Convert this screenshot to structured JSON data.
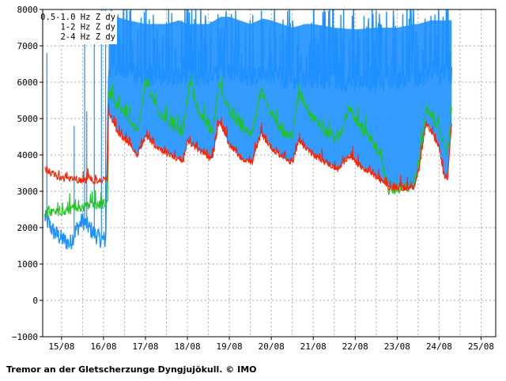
{
  "caption": "Tremor an der Gletscherzunge Dyngjujökull. © IMO",
  "chart_data": {
    "type": "line",
    "y_ticks": [
      8000,
      7000,
      6000,
      5000,
      4000,
      3000,
      2000,
      1000,
      0,
      -1000
    ],
    "y_tick_labels": [
      "8000",
      "7000",
      "6000",
      "5000",
      "4000",
      "3000",
      "2000",
      "1000",
      "0",
      "−1000"
    ],
    "ylim": [
      -1000,
      8000
    ],
    "x_tick_labels": [
      "15/08",
      "16/08",
      "17/08",
      "18/08",
      "19/08",
      "20/08",
      "21/08",
      "22/08",
      "23/08",
      "24/08",
      "25/08"
    ],
    "xlim": [
      14.55,
      25.35
    ],
    "grid": true,
    "legend_position": "top-left",
    "series": [
      {
        "name": "0.5-1.0 Hz Z dy",
        "color": "#1e90ff",
        "points": [
          [
            14.6,
            2300
          ],
          [
            14.8,
            1900
          ],
          [
            15.0,
            1700
          ],
          [
            15.2,
            1550
          ],
          [
            15.35,
            1950
          ],
          [
            15.5,
            2200
          ],
          [
            15.65,
            2000
          ],
          [
            15.9,
            1700
          ],
          [
            16.05,
            1650
          ],
          [
            16.12,
            6200
          ],
          [
            16.3,
            6300
          ],
          [
            16.6,
            6200
          ],
          [
            17.0,
            6100
          ],
          [
            17.5,
            6100
          ],
          [
            17.8,
            6200
          ],
          [
            18.0,
            6100
          ],
          [
            18.5,
            6100
          ],
          [
            18.8,
            6300
          ],
          [
            19.0,
            6300
          ],
          [
            19.5,
            6100
          ],
          [
            19.8,
            6250
          ],
          [
            20.0,
            6200
          ],
          [
            20.5,
            6000
          ],
          [
            20.8,
            6100
          ],
          [
            21.0,
            6100
          ],
          [
            21.5,
            6000
          ],
          [
            22.0,
            5950
          ],
          [
            22.5,
            6000
          ],
          [
            23.0,
            6000
          ],
          [
            23.45,
            6100
          ],
          [
            23.5,
            6100
          ],
          [
            23.8,
            6200
          ],
          [
            24.0,
            6200
          ],
          [
            24.3,
            6200
          ]
        ],
        "peaks": [
          [
            14.65,
            6800
          ],
          [
            15.3,
            4800
          ],
          [
            15.55,
            7500
          ],
          [
            15.6,
            5200
          ],
          [
            15.78,
            7700
          ],
          [
            15.95,
            8000
          ],
          [
            16.05,
            8000
          ]
        ]
      },
      {
        "name": "1-2 Hz Z dy",
        "color": "#1fc51f",
        "points": [
          [
            14.6,
            2400
          ],
          [
            15.0,
            2450
          ],
          [
            15.5,
            2550
          ],
          [
            16.0,
            2650
          ],
          [
            16.1,
            2700
          ],
          [
            16.12,
            5700
          ],
          [
            16.3,
            5400
          ],
          [
            16.6,
            5000
          ],
          [
            16.8,
            4600
          ],
          [
            17.0,
            6000
          ],
          [
            17.3,
            5200
          ],
          [
            17.6,
            4800
          ],
          [
            17.9,
            4600
          ],
          [
            18.05,
            6000
          ],
          [
            18.3,
            5100
          ],
          [
            18.6,
            4600
          ],
          [
            18.75,
            5900
          ],
          [
            19.0,
            5200
          ],
          [
            19.3,
            4700
          ],
          [
            19.55,
            4600
          ],
          [
            19.75,
            5800
          ],
          [
            20.0,
            5100
          ],
          [
            20.3,
            4600
          ],
          [
            20.5,
            4500
          ],
          [
            20.65,
            5700
          ],
          [
            21.0,
            5000
          ],
          [
            21.3,
            4600
          ],
          [
            21.6,
            4400
          ],
          [
            21.85,
            5300
          ],
          [
            22.1,
            4800
          ],
          [
            22.4,
            4400
          ],
          [
            22.6,
            4000
          ],
          [
            22.8,
            3000
          ],
          [
            23.2,
            3100
          ],
          [
            23.4,
            3100
          ],
          [
            23.5,
            3600
          ],
          [
            23.7,
            5300
          ],
          [
            24.0,
            4700
          ],
          [
            24.2,
            4100
          ],
          [
            24.3,
            5300
          ]
        ]
      },
      {
        "name": "2-4 Hz Z dy",
        "color": "#ff2200",
        "points": [
          [
            14.6,
            3600
          ],
          [
            15.0,
            3350
          ],
          [
            15.5,
            3300
          ],
          [
            16.0,
            3300
          ],
          [
            16.1,
            3400
          ],
          [
            16.12,
            5200
          ],
          [
            16.3,
            4700
          ],
          [
            16.6,
            4300
          ],
          [
            16.8,
            4000
          ],
          [
            17.0,
            4500
          ],
          [
            17.3,
            4200
          ],
          [
            17.6,
            4000
          ],
          [
            17.9,
            3800
          ],
          [
            18.0,
            4400
          ],
          [
            18.3,
            4100
          ],
          [
            18.6,
            3900
          ],
          [
            18.75,
            4900
          ],
          [
            19.0,
            4300
          ],
          [
            19.3,
            3900
          ],
          [
            19.55,
            3800
          ],
          [
            19.75,
            4600
          ],
          [
            20.0,
            4200
          ],
          [
            20.3,
            3900
          ],
          [
            20.5,
            3800
          ],
          [
            20.65,
            4400
          ],
          [
            21.0,
            4000
          ],
          [
            21.3,
            3800
          ],
          [
            21.6,
            3600
          ],
          [
            21.85,
            4000
          ],
          [
            22.1,
            3700
          ],
          [
            22.4,
            3500
          ],
          [
            22.6,
            3300
          ],
          [
            22.8,
            3100
          ],
          [
            23.2,
            3100
          ],
          [
            23.4,
            3100
          ],
          [
            23.5,
            3500
          ],
          [
            23.7,
            4900
          ],
          [
            24.0,
            4200
          ],
          [
            24.1,
            3500
          ],
          [
            24.2,
            3300
          ],
          [
            24.3,
            4900
          ]
        ]
      }
    ]
  }
}
